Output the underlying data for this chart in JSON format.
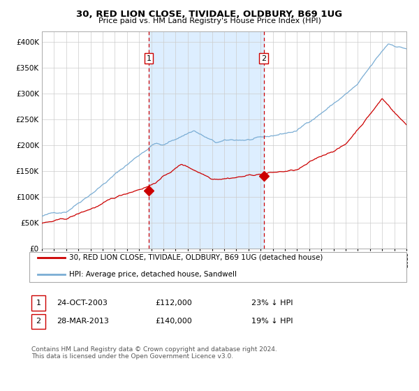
{
  "title": "30, RED LION CLOSE, TIVIDALE, OLDBURY, B69 1UG",
  "subtitle": "Price paid vs. HM Land Registry's House Price Index (HPI)",
  "legend_line1": "30, RED LION CLOSE, TIVIDALE, OLDBURY, B69 1UG (detached house)",
  "legend_line2": "HPI: Average price, detached house, Sandwell",
  "annotation1_label": "1",
  "annotation1_date": "24-OCT-2003",
  "annotation1_price": "£112,000",
  "annotation1_hpi": "23% ↓ HPI",
  "annotation2_label": "2",
  "annotation2_date": "28-MAR-2013",
  "annotation2_price": "£140,000",
  "annotation2_hpi": "19% ↓ HPI",
  "footer": "Contains HM Land Registry data © Crown copyright and database right 2024.\nThis data is licensed under the Open Government Licence v3.0.",
  "hpi_color": "#7aadd4",
  "price_color": "#cc0000",
  "marker_color": "#cc0000",
  "background_color": "#ffffff",
  "plot_bg_color": "#ffffff",
  "shade_color": "#ddeeff",
  "grid_color": "#cccccc",
  "anno_vline_color": "#cc0000",
  "ylim": [
    0,
    420000
  ],
  "yticks": [
    0,
    50000,
    100000,
    150000,
    200000,
    250000,
    300000,
    350000,
    400000
  ],
  "year_start": 1995,
  "year_end": 2025,
  "annotation1_year": 2003.8,
  "annotation2_year": 2013.25,
  "sale1_price": 112000,
  "sale2_price": 140000
}
